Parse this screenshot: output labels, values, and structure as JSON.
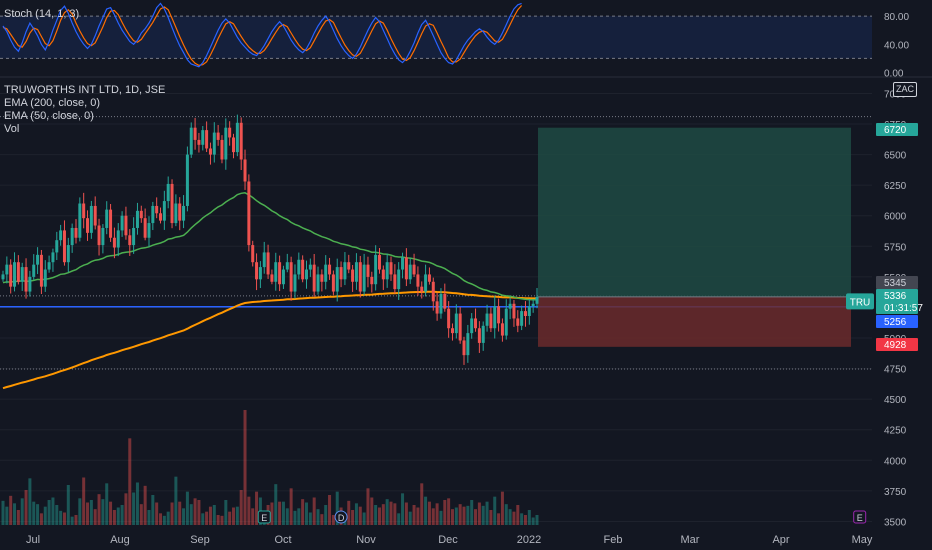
{
  "stoch": {
    "title": "Stoch (14, 1, 3)",
    "levels": [
      "80.00",
      "40.00",
      "0.00"
    ],
    "level_values": [
      80,
      40,
      0
    ],
    "band_upper": 80,
    "band_lower": 20,
    "ymin": -5,
    "ymax": 100,
    "k_values": [
      66,
      58,
      46,
      36,
      30,
      42,
      58,
      70,
      62,
      52,
      40,
      32,
      44,
      60,
      74,
      88,
      94,
      84,
      70,
      58,
      48,
      40,
      34,
      40,
      52,
      66,
      78,
      90,
      92,
      82,
      70,
      60,
      52,
      44,
      40,
      46,
      56,
      62,
      70,
      80,
      92,
      98,
      90,
      78,
      64,
      50,
      38,
      28,
      18,
      12,
      10,
      8,
      14,
      24,
      36,
      48,
      60,
      70,
      76,
      70,
      60,
      50,
      42,
      36,
      30,
      26,
      24,
      30,
      38,
      48,
      58,
      66,
      72,
      66,
      56,
      46,
      38,
      32,
      28,
      34,
      44,
      56,
      66,
      74,
      80,
      72,
      60,
      48,
      38,
      30,
      24,
      20,
      26,
      36,
      48,
      60,
      70,
      78,
      72,
      60,
      48,
      36,
      26,
      18,
      14,
      20,
      30,
      42,
      56,
      68,
      74,
      64,
      52,
      40,
      28,
      20,
      14,
      12,
      18,
      28,
      38,
      46,
      52,
      58,
      62,
      58,
      50,
      44,
      40,
      46,
      56,
      68,
      80,
      90,
      96,
      98
    ],
    "d_values": [
      64,
      62,
      54,
      46,
      38,
      36,
      44,
      56,
      63,
      61,
      51,
      41,
      38,
      45,
      59,
      74,
      85,
      89,
      83,
      70,
      59,
      49,
      41,
      38,
      42,
      53,
      65,
      78,
      87,
      88,
      82,
      71,
      61,
      52,
      45,
      43,
      47,
      55,
      63,
      71,
      81,
      90,
      93,
      89,
      77,
      64,
      51,
      39,
      28,
      19,
      13,
      10,
      11,
      15,
      25,
      36,
      48,
      59,
      69,
      72,
      69,
      60,
      51,
      43,
      36,
      31,
      27,
      27,
      31,
      39,
      48,
      57,
      65,
      68,
      65,
      56,
      47,
      39,
      33,
      31,
      35,
      45,
      55,
      65,
      73,
      75,
      71,
      60,
      49,
      39,
      31,
      25,
      23,
      27,
      37,
      48,
      59,
      69,
      73,
      70,
      60,
      48,
      37,
      27,
      19,
      17,
      21,
      31,
      43,
      55,
      66,
      69,
      67,
      56,
      44,
      33,
      21,
      15,
      15,
      19,
      28,
      37,
      45,
      52,
      57,
      59,
      57,
      51,
      45,
      43,
      47,
      57,
      68,
      79,
      89,
      95
    ]
  },
  "main": {
    "title": "TRUWORTHS INT LTD, 1D, JSE",
    "legend": [
      "EMA (200, close, 0)",
      "EMA (50, close, 0)",
      "Vol"
    ],
    "zac_label": "ZAC",
    "yaxis_ticks": [
      "7000",
      "6750",
      "6500",
      "6250",
      "6000",
      "5750",
      "5500",
      "5250",
      "5000",
      "4750",
      "4500",
      "4250",
      "4000",
      "3750",
      "3500"
    ],
    "tick_values": [
      7000,
      6750,
      6500,
      6250,
      6000,
      5750,
      5500,
      5250,
      5000,
      4750,
      4500,
      4250,
      4000,
      3750,
      3500
    ],
    "price_min": 3430,
    "price_max": 7110,
    "xaxis_labels": [
      "Jul",
      "Aug",
      "Sep",
      "Oct",
      "Nov",
      "Dec",
      "2022",
      "Feb",
      "Mar",
      "Apr",
      "May"
    ],
    "price_labels": [
      {
        "text": "6720",
        "value": 6720,
        "bg": "#26a69a",
        "fg": "#ffffff"
      },
      {
        "text": "5345",
        "value": 5345,
        "bg": "#434651",
        "fg": "#d1d4dc"
      },
      {
        "text": "5336",
        "value": 5336,
        "bg": "#26a69a",
        "fg": "#ffffff"
      },
      {
        "text": "01:31:57",
        "value": 5305,
        "bg": "#26a69a",
        "fg": "#ffffff"
      },
      {
        "text": "5256",
        "value": 5256,
        "bg": "#2962ff",
        "fg": "#ffffff"
      },
      {
        "text": "4928",
        "value": 4928,
        "bg": "#f23645",
        "fg": "#ffffff"
      }
    ],
    "symbol_tag": "TRU",
    "horizontal_line": 5256,
    "dotted_levels": [
      6810,
      5345,
      4747
    ],
    "position": {
      "entry": 5336,
      "target": 6720,
      "stop": 4928
    },
    "event_markers": [
      {
        "text": "E",
        "index": 68
      },
      {
        "text": "D",
        "index": 88
      },
      {
        "text": "E",
        "index": 223
      }
    ],
    "colors": {
      "up": "#26a69a",
      "down": "#ef5350",
      "ema50": "#4caf50",
      "ema200": "#ff9800",
      "hline": "#2962ff",
      "profit": "#1e4a43",
      "loss": "#6b2a2c",
      "bg": "#131722",
      "grid": "#1e222d"
    }
  },
  "chart_data": {
    "type": "candlestick",
    "title": "TRUWORTHS INT LTD, 1D, JSE",
    "ylim": [
      3430,
      7110
    ],
    "close": [
      5520,
      5600,
      5420,
      5620,
      5460,
      5580,
      5380,
      5500,
      5600,
      5680,
      5420,
      5560,
      5620,
      5700,
      5800,
      5880,
      5620,
      5760,
      5900,
      5820,
      6100,
      5980,
      5860,
      6080,
      5920,
      5760,
      5900,
      6050,
      5820,
      5740,
      5880,
      6000,
      5840,
      5760,
      5900,
      6040,
      5980,
      5820,
      5940,
      6080,
      6020,
      5960,
      6120,
      6260,
      5940,
      6100,
      5960,
      6080,
      6500,
      6720,
      6620,
      6580,
      6700,
      6550,
      6500,
      6680,
      6620,
      6460,
      6720,
      6640,
      6520,
      6760,
      6460,
      6280,
      5760,
      5620,
      5480,
      5580,
      5700,
      5520,
      5460,
      5620,
      5440,
      5560,
      5620,
      5380,
      5520,
      5640,
      5480,
      5560,
      5600,
      5380,
      5520,
      5460,
      5600,
      5520,
      5380,
      5580,
      5480,
      5620,
      5560,
      5460,
      5620,
      5380,
      5600,
      5500,
      5440,
      5680,
      5560,
      5480,
      5620,
      5520,
      5400,
      5560,
      5660,
      5480,
      5600,
      5520,
      5420,
      5380,
      5520,
      5460,
      5300,
      5200,
      5360,
      5240,
      5080,
      5040,
      5200,
      4980,
      4860,
      5040,
      5160,
      5080,
      4960,
      5100,
      5200,
      5080,
      5260,
      5120,
      5020,
      5240,
      5280,
      5160,
      5100,
      5220,
      5180,
      5260,
      5280,
      5336
    ],
    "volume": [
      29,
      22,
      35,
      26,
      18,
      32,
      42,
      56,
      28,
      25,
      14,
      22,
      30,
      33,
      24,
      17,
      15,
      48,
      10,
      12,
      32,
      57,
      27,
      30,
      19,
      37,
      31,
      50,
      28,
      18,
      21,
      24,
      38,
      104,
      39,
      51,
      25,
      47,
      18,
      36,
      27,
      14,
      11,
      16,
      27,
      58,
      28,
      20,
      40,
      25,
      32,
      30,
      14,
      16,
      22,
      24,
      12,
      11,
      30,
      16,
      21,
      22,
      42,
      138,
      34,
      20,
      40,
      33,
      16,
      24,
      27,
      49,
      28,
      28,
      20,
      44,
      17,
      20,
      31,
      27,
      15,
      33,
      19,
      13,
      24,
      36,
      12,
      40,
      21,
      11,
      29,
      18,
      26,
      22,
      15,
      44,
      33,
      24,
      21,
      25,
      31,
      28,
      26,
      14,
      38,
      27,
      16,
      24,
      21,
      50,
      34,
      28,
      20,
      26,
      17,
      30,
      32,
      19,
      21,
      25,
      22,
      23,
      30,
      19,
      27,
      23,
      28,
      18,
      34,
      14,
      40,
      25,
      19,
      16,
      24,
      14,
      12,
      18,
      9,
      12
    ]
  }
}
